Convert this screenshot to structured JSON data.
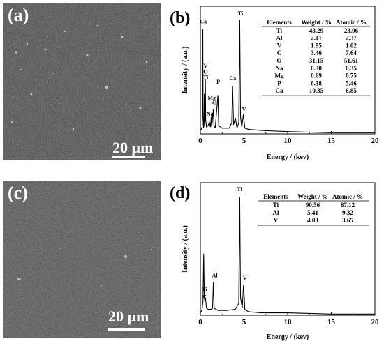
{
  "panels": {
    "a": {
      "label": "(a)",
      "scale": "20 μm"
    },
    "c": {
      "label": "(c)",
      "scale": "20 μm"
    }
  },
  "chart_data": [
    {
      "type": "line",
      "panel_label": "(b)",
      "xlabel": "Energy / (kev)",
      "ylabel": "Intensity / (a.u.)",
      "xlim": [
        0,
        20
      ],
      "xticks": [
        0,
        5,
        10,
        15,
        20
      ],
      "spectrum": [
        [
          0,
          0.03
        ],
        [
          0.1,
          0.04
        ],
        [
          0.2,
          0.06
        ],
        [
          0.25,
          0.2
        ],
        [
          0.28,
          0.92
        ],
        [
          0.31,
          0.2
        ],
        [
          0.36,
          0.05
        ],
        [
          0.42,
          0.08
        ],
        [
          0.45,
          0.35
        ],
        [
          0.49,
          0.1
        ],
        [
          0.53,
          0.12
        ],
        [
          0.57,
          0.48
        ],
        [
          0.61,
          0.12
        ],
        [
          0.7,
          0.06
        ],
        [
          0.85,
          0.07
        ],
        [
          1.04,
          0.1
        ],
        [
          1.15,
          0.06
        ],
        [
          1.25,
          0.15
        ],
        [
          1.3,
          0.06
        ],
        [
          1.49,
          0.22
        ],
        [
          1.55,
          0.08
        ],
        [
          1.7,
          0.05
        ],
        [
          2.01,
          0.34
        ],
        [
          2.1,
          0.07
        ],
        [
          2.5,
          0.05
        ],
        [
          3.0,
          0.05
        ],
        [
          3.3,
          0.05
        ],
        [
          3.6,
          0.1
        ],
        [
          3.69,
          0.42
        ],
        [
          3.8,
          0.08
        ],
        [
          4.01,
          0.14
        ],
        [
          4.2,
          0.05
        ],
        [
          4.4,
          0.1
        ],
        [
          4.51,
          1.0
        ],
        [
          4.6,
          0.15
        ],
        [
          4.75,
          0.06
        ],
        [
          4.93,
          0.17
        ],
        [
          5.1,
          0.05
        ],
        [
          5.5,
          0.04
        ],
        [
          7,
          0.03
        ],
        [
          10,
          0.02
        ],
        [
          15,
          0.01
        ],
        [
          20,
          0.01
        ]
      ],
      "peaks": [
        {
          "label": "Ca",
          "x": 0.34,
          "y": 0.97
        },
        {
          "label": "V",
          "x": 0.6,
          "y": 0.58
        },
        {
          "label": "O",
          "x": 0.6,
          "y": 0.53
        },
        {
          "label": "Ti",
          "x": 0.6,
          "y": 0.48
        },
        {
          "label": "Na",
          "x": 1.1,
          "y": 0.16
        },
        {
          "label": "Mg",
          "x": 1.3,
          "y": 0.3
        },
        {
          "label": "Al",
          "x": 1.55,
          "y": 0.25
        },
        {
          "label": "P",
          "x": 2.05,
          "y": 0.44
        },
        {
          "label": "Ca",
          "x": 3.7,
          "y": 0.47
        },
        {
          "label": "Ti",
          "x": 4.6,
          "y": 1.04
        },
        {
          "label": "V",
          "x": 5.0,
          "y": 0.2
        }
      ],
      "table": {
        "headers": [
          "Elements",
          "Weight / %",
          "Atomic / %"
        ],
        "rows": [
          [
            "Ti",
            "43.29",
            "23.96"
          ],
          [
            "Al",
            "2.41",
            "2.37"
          ],
          [
            "V",
            "1.95",
            "1.02"
          ],
          [
            "C",
            "3.46",
            "7.64"
          ],
          [
            "O",
            "31.15",
            "51.61"
          ],
          [
            "Na",
            "0.30",
            "0.35"
          ],
          [
            "Mg",
            "0.69",
            "0.75"
          ],
          [
            "P",
            "6.38",
            "5.46"
          ],
          [
            "Ca",
            "10.35",
            "6.85"
          ]
        ]
      }
    },
    {
      "type": "line",
      "panel_label": "(d)",
      "xlabel": "Energy / (kev)",
      "ylabel": "Intensity / (a.u.)",
      "xlim": [
        0,
        20
      ],
      "xticks": [
        0,
        5,
        10,
        15,
        20
      ],
      "spectrum": [
        [
          0,
          0.02
        ],
        [
          0.1,
          0.03
        ],
        [
          0.2,
          0.05
        ],
        [
          0.3,
          0.12
        ],
        [
          0.38,
          0.52
        ],
        [
          0.45,
          0.15
        ],
        [
          0.52,
          0.12
        ],
        [
          0.58,
          0.15
        ],
        [
          0.7,
          0.06
        ],
        [
          0.9,
          0.05
        ],
        [
          1.2,
          0.05
        ],
        [
          1.4,
          0.06
        ],
        [
          1.49,
          0.28
        ],
        [
          1.58,
          0.06
        ],
        [
          2.0,
          0.04
        ],
        [
          3.0,
          0.04
        ],
        [
          4.0,
          0.05
        ],
        [
          4.4,
          0.1
        ],
        [
          4.51,
          1.0
        ],
        [
          4.6,
          0.15
        ],
        [
          4.8,
          0.06
        ],
        [
          4.95,
          0.26
        ],
        [
          5.1,
          0.05
        ],
        [
          5.5,
          0.03
        ],
        [
          7,
          0.02
        ],
        [
          10,
          0.02
        ],
        [
          15,
          0.01
        ],
        [
          20,
          0.01
        ]
      ],
      "peaks": [
        {
          "label": "Ti",
          "x": 0.45,
          "y": 0.2
        },
        {
          "label": "V",
          "x": 0.45,
          "y": 0.14
        },
        {
          "label": "Al",
          "x": 1.65,
          "y": 0.32
        },
        {
          "label": "Ti",
          "x": 4.5,
          "y": 1.05
        },
        {
          "label": "V",
          "x": 5.1,
          "y": 0.3
        }
      ],
      "table": {
        "headers": [
          "Elements",
          "Weight / %",
          "Atomic / %"
        ],
        "rows": [
          [
            "Ti",
            "90.56",
            "87.12"
          ],
          [
            "Al",
            "5.41",
            "9.32"
          ],
          [
            "V",
            "4.03",
            "3.65"
          ]
        ]
      }
    }
  ]
}
